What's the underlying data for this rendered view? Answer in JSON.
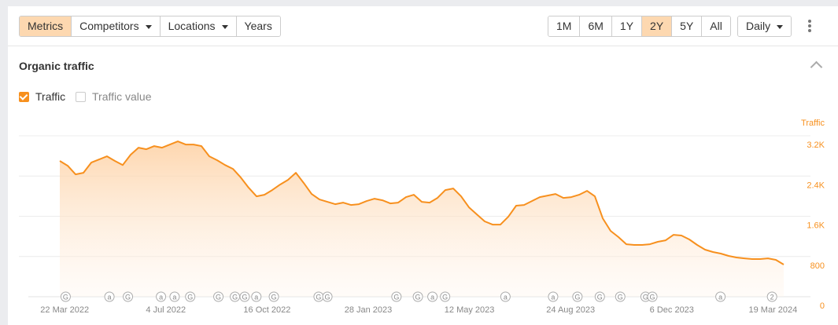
{
  "toolbar": {
    "tabs": [
      {
        "label": "Metrics",
        "active": true
      },
      {
        "label": "Competitors",
        "dropdown": true
      },
      {
        "label": "Locations",
        "dropdown": true
      },
      {
        "label": "Years"
      }
    ],
    "ranges": [
      {
        "label": "1M"
      },
      {
        "label": "6M"
      },
      {
        "label": "1Y"
      },
      {
        "label": "2Y",
        "active": true
      },
      {
        "label": "5Y"
      },
      {
        "label": "All"
      }
    ],
    "interval": "Daily",
    "more_icon": "kebab-vertical-icon"
  },
  "section": {
    "title": "Organic traffic",
    "collapse_icon": "chevron-up-icon"
  },
  "legend": [
    {
      "label": "Traffic",
      "checked": true
    },
    {
      "label": "Traffic value",
      "checked": false
    }
  ],
  "colors": {
    "accent": "#f7901e",
    "active_button": "#fdd8b0"
  },
  "chart_data": {
    "type": "area",
    "ylabel": "Traffic",
    "ylim": [
      0,
      3200
    ],
    "yticks": [
      {
        "v": 0,
        "label": "0"
      },
      {
        "v": 800,
        "label": "800"
      },
      {
        "v": 1600,
        "label": "1.6K"
      },
      {
        "v": 2400,
        "label": "2.4K"
      },
      {
        "v": 3200,
        "label": "3.2K"
      }
    ],
    "x_range": [
      "2022-03-17",
      "2024-03-30"
    ],
    "xticks": [
      {
        "date": "2022-03-22",
        "label": "22 Mar 2022"
      },
      {
        "date": "2022-07-04",
        "label": "4 Jul 2022"
      },
      {
        "date": "2022-10-16",
        "label": "16 Oct 2022"
      },
      {
        "date": "2023-01-28",
        "label": "28 Jan 2023"
      },
      {
        "date": "2023-05-12",
        "label": "12 May 2023"
      },
      {
        "date": "2023-08-24",
        "label": "24 Aug 2023"
      },
      {
        "date": "2023-12-06",
        "label": "6 Dec 2023"
      },
      {
        "date": "2024-03-19",
        "label": "19 Mar 2024"
      }
    ],
    "grid": true,
    "values": [
      2700,
      2605,
      2434,
      2465,
      2668,
      2730,
      2792,
      2700,
      2620,
      2824,
      2964,
      2933,
      2995,
      2964,
      3026,
      3089,
      3026,
      3026,
      2995,
      2792,
      2714,
      2620,
      2543,
      2371,
      2168,
      1997,
      2028,
      2122,
      2231,
      2324,
      2465,
      2262,
      2044,
      1934,
      1888,
      1841,
      1872,
      1825,
      1841,
      1903,
      1950,
      1919,
      1856,
      1872,
      1981,
      2028,
      1888,
      1872,
      1966,
      2122,
      2153,
      1997,
      1778,
      1638,
      1498,
      1435,
      1435,
      1591,
      1810,
      1825,
      1903,
      1981,
      2012,
      2044,
      1966,
      1981,
      2028,
      2106,
      1997,
      1560,
      1310,
      1186,
      1045,
      1030,
      1030,
      1045,
      1092,
      1123,
      1232,
      1217,
      1139,
      1030,
      936,
      889,
      858,
      811,
      780,
      764,
      749,
      749,
      764,
      733,
      640
    ],
    "annotations": [
      {
        "date": "2022-03-23",
        "label": "G"
      },
      {
        "date": "2022-05-07",
        "label": "a"
      },
      {
        "date": "2022-05-26",
        "label": "G"
      },
      {
        "date": "2022-06-29",
        "label": "a"
      },
      {
        "date": "2022-07-13",
        "label": "a"
      },
      {
        "date": "2022-07-29",
        "label": "G"
      },
      {
        "date": "2022-08-27",
        "label": "G"
      },
      {
        "date": "2022-09-13",
        "label": "G"
      },
      {
        "date": "2022-09-23",
        "label": "G"
      },
      {
        "date": "2022-10-05",
        "label": "a"
      },
      {
        "date": "2022-10-23",
        "label": "G"
      },
      {
        "date": "2022-12-08",
        "label": "G"
      },
      {
        "date": "2022-12-17",
        "label": "G"
      },
      {
        "date": "2023-02-26",
        "label": "G"
      },
      {
        "date": "2023-03-20",
        "label": "G"
      },
      {
        "date": "2023-04-04",
        "label": "a"
      },
      {
        "date": "2023-04-17",
        "label": "G"
      },
      {
        "date": "2023-06-18",
        "label": "a"
      },
      {
        "date": "2023-08-06",
        "label": "a"
      },
      {
        "date": "2023-08-31",
        "label": "G"
      },
      {
        "date": "2023-09-23",
        "label": "G"
      },
      {
        "date": "2023-10-14",
        "label": "G"
      },
      {
        "date": "2023-11-09",
        "label": "G"
      },
      {
        "date": "2023-11-16",
        "label": "G"
      },
      {
        "date": "2024-01-25",
        "label": "a"
      },
      {
        "date": "2024-03-18",
        "label": "2"
      }
    ]
  }
}
